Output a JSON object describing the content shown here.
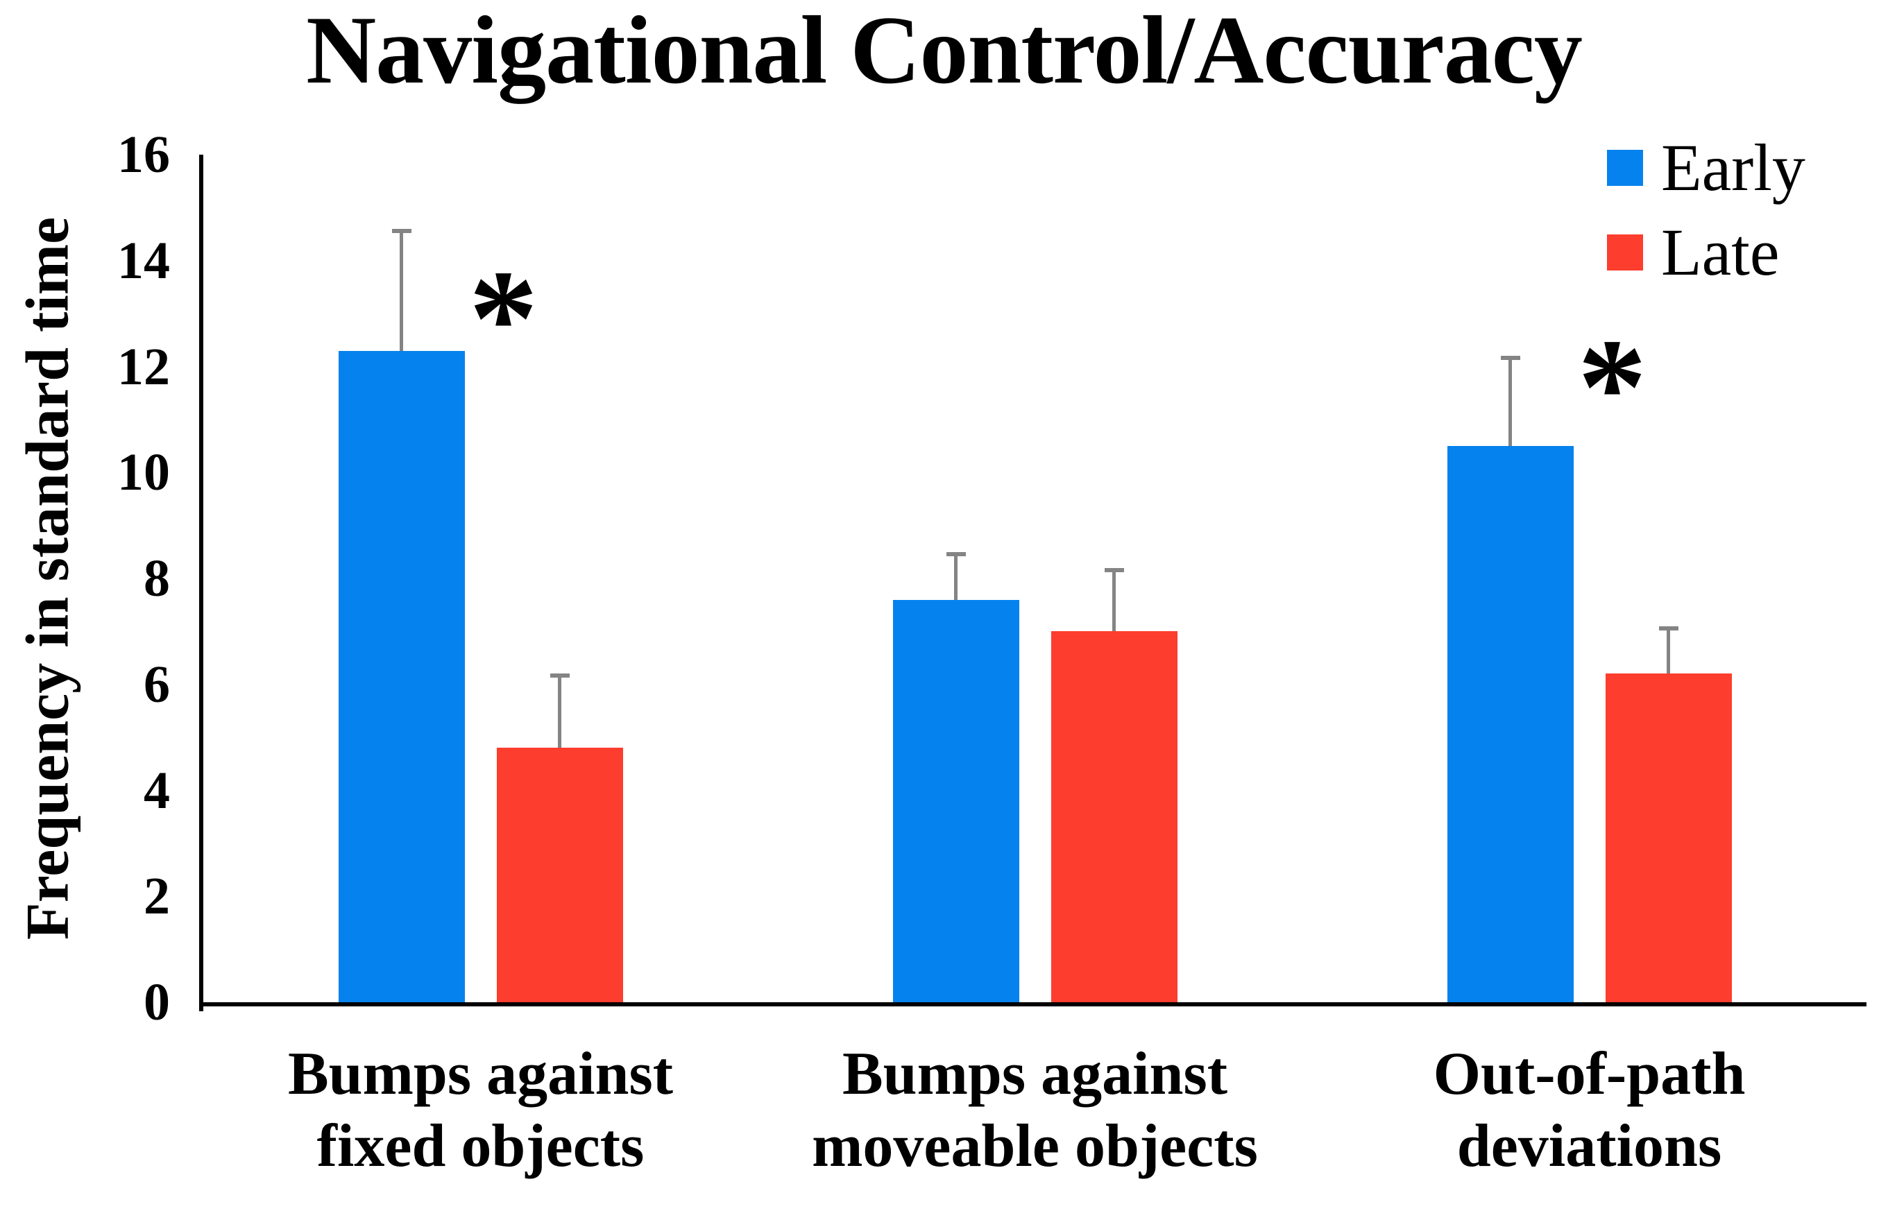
{
  "chart_data": {
    "type": "bar",
    "title": "Navigational Control/Accuracy",
    "ylabel": "Frequency in standard time",
    "xlabel": "",
    "categories": [
      "Bumps against\nfixed objects",
      "Bumps against\nmoveable objects",
      "Out-of-path\ndeviations"
    ],
    "series": [
      {
        "name": "Early",
        "color": "#0682EE",
        "values": [
          12.3,
          7.6,
          10.5
        ],
        "errors": [
          2.3,
          0.9,
          1.7
        ]
      },
      {
        "name": "Late",
        "color": "#FD3D2D",
        "values": [
          4.8,
          7.0,
          6.2
        ],
        "errors": [
          1.4,
          1.2,
          0.9
        ]
      }
    ],
    "ylim": [
      0,
      16
    ],
    "yticks": [
      0,
      2,
      4,
      6,
      8,
      10,
      12,
      14,
      16
    ],
    "annotations": [
      {
        "group": 0,
        "symbol": "*",
        "y": 13.4
      },
      {
        "group": 2,
        "symbol": "*",
        "y": 12.1
      }
    ],
    "error_bar_color": "#848484",
    "axis_color": "#000000",
    "grid": false,
    "legend_position": "top-right"
  }
}
